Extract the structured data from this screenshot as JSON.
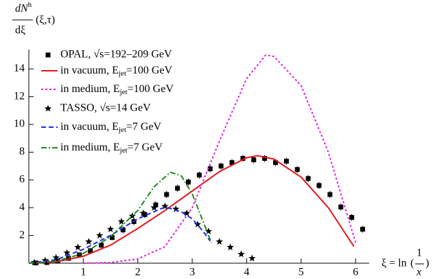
{
  "chart_data": {
    "type": "line",
    "ylabel": {
      "num": "dN",
      "sup": "h",
      "den": "dξ",
      "args": "(ξ,τ)"
    },
    "xlabel": {
      "lhs": "ξ = ln",
      "open": "(",
      "num": "1",
      "den": "x",
      "close": ")"
    },
    "xlim": [
      0,
      6.25
    ],
    "ylim": [
      0,
      15.4
    ],
    "xticks": [
      1,
      2,
      3,
      4,
      5,
      6
    ],
    "yticks": [
      2,
      4,
      6,
      8,
      10,
      12,
      14
    ],
    "series": [
      {
        "name": "OPAL, √s=192–209 GeV",
        "kind": "points",
        "marker": "square",
        "color": "#000000",
        "x": [
          0.13,
          0.33,
          0.53,
          0.73,
          0.93,
          1.13,
          1.33,
          1.53,
          1.73,
          1.93,
          2.13,
          2.33,
          2.53,
          2.73,
          2.93,
          3.13,
          3.33,
          3.53,
          3.73,
          3.93,
          4.13,
          4.33,
          4.53,
          4.73,
          4.93,
          5.13,
          5.33,
          5.53,
          5.73,
          5.93,
          6.13
        ],
        "values": [
          0.02,
          0.05,
          0.15,
          0.35,
          0.6,
          0.9,
          1.3,
          1.85,
          2.4,
          3.0,
          3.5,
          4.2,
          4.95,
          5.4,
          5.85,
          6.35,
          6.8,
          7.0,
          7.25,
          7.55,
          7.45,
          7.55,
          7.25,
          7.35,
          6.75,
          6.1,
          5.6,
          4.95,
          4.05,
          3.3,
          2.45
        ],
        "errors": [
          0.1,
          0.1,
          0.1,
          0.15,
          0.15,
          0.2,
          0.2,
          0.2,
          0.25,
          0.25,
          0.25,
          0.25,
          0.25,
          0.25,
          0.25,
          0.25,
          0.25,
          0.25,
          0.25,
          0.25,
          0.25,
          0.25,
          0.25,
          0.25,
          0.25,
          0.25,
          0.25,
          0.25,
          0.25,
          0.25,
          0.25
        ]
      },
      {
        "name": "in vacuum, Ejet=100 GeV",
        "kind": "line",
        "dash": "solid",
        "color": "#e8141a",
        "x": [
          0,
          0.5,
          1,
          1.5,
          2,
          2.5,
          3,
          3.5,
          4,
          4.2,
          4.5,
          5,
          5.5,
          5.97
        ],
        "values": [
          0,
          0.1,
          0.5,
          1.3,
          2.5,
          3.8,
          5.2,
          6.6,
          7.6,
          7.75,
          7.5,
          6.2,
          4.0,
          1.2
        ]
      },
      {
        "name": "in medium, Ejet=100 GeV",
        "kind": "line",
        "dash": "dotted",
        "color": "#e81ae8",
        "x": [
          1.0,
          1.5,
          2,
          2.5,
          3,
          3.5,
          4,
          4.35,
          4.5,
          5,
          5.5,
          5.9,
          6.0
        ],
        "values": [
          0,
          0.05,
          0.3,
          1.2,
          4.0,
          8.8,
          13.3,
          15.0,
          14.9,
          12.8,
          8.0,
          2.8,
          1.5
        ]
      },
      {
        "name": "TASSO, √s=14 GeV",
        "kind": "points",
        "marker": "star",
        "color": "#000000",
        "x": [
          0.1,
          0.3,
          0.5,
          0.7,
          0.9,
          1.1,
          1.3,
          1.5,
          1.7,
          1.9,
          2.1,
          2.3,
          2.5,
          2.7,
          2.9,
          3.1,
          3.3,
          3.5,
          3.7,
          3.9,
          4.1
        ],
        "values": [
          0.05,
          0.2,
          0.4,
          0.75,
          1.15,
          1.55,
          2.0,
          2.45,
          3.0,
          3.4,
          3.6,
          4.0,
          4.1,
          3.9,
          3.6,
          2.8,
          2.3,
          1.55,
          1.15,
          0.65,
          0.35
        ]
      },
      {
        "name": "in vacuum, Ejet=7 GeV",
        "kind": "line",
        "dash": "dashed",
        "color": "#1a2ae8",
        "x": [
          0,
          0.5,
          1,
          1.5,
          2,
          2.5,
          2.8,
          3,
          3.2,
          3.33
        ],
        "values": [
          0,
          0.25,
          1.0,
          2.0,
          3.2,
          4.05,
          3.7,
          3.2,
          2.3,
          1.6
        ]
      },
      {
        "name": "in medium, Ejet=7 GeV",
        "kind": "line",
        "dash": "dashdot",
        "color": "#188a18",
        "x": [
          0,
          0.5,
          1,
          1.5,
          2,
          2.3,
          2.6,
          2.8,
          3,
          3.2,
          3.35
        ],
        "values": [
          0,
          0.15,
          0.7,
          1.9,
          3.8,
          5.5,
          6.55,
          6.3,
          5.0,
          3.0,
          1.5
        ]
      }
    ]
  }
}
